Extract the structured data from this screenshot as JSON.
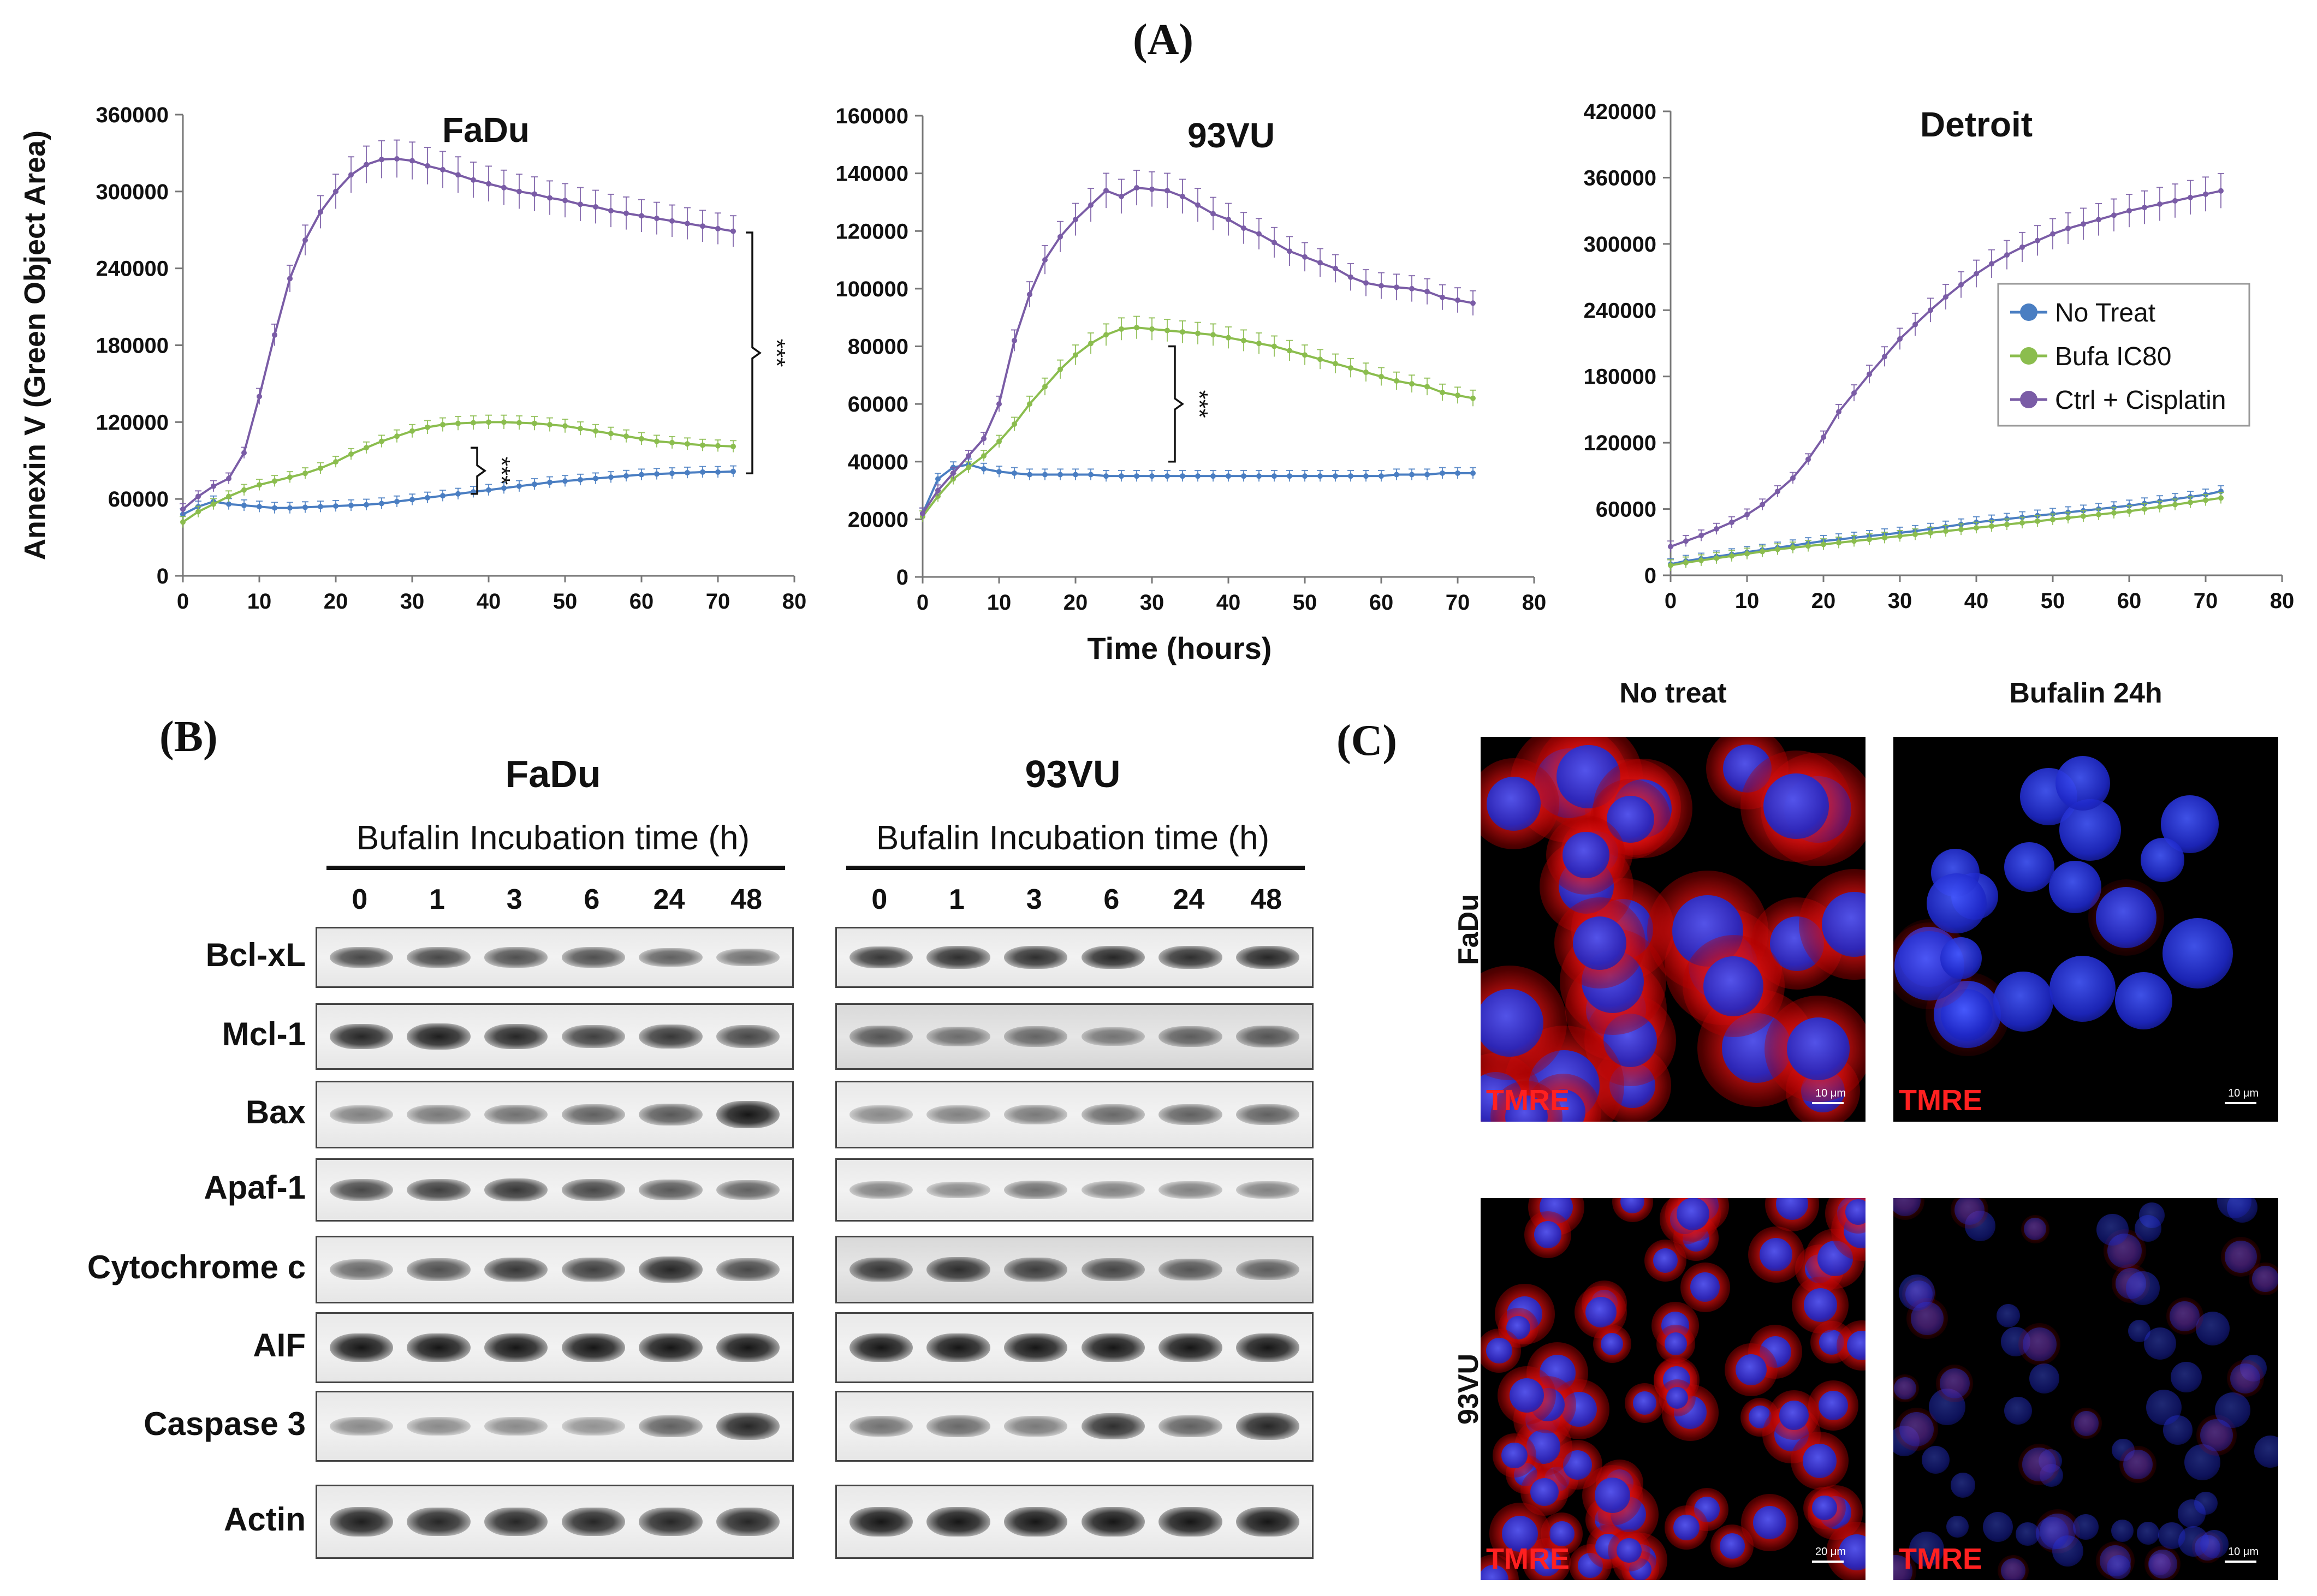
{
  "panel_labels": {
    "a": "(A)",
    "b": "(B)",
    "c": "(C)"
  },
  "colors": {
    "no_treat": "#4a7ec2",
    "bufa": "#8bbd4e",
    "cisplatin": "#7a5ca6"
  },
  "chart_data": [
    {
      "type": "line",
      "title": "FaDu",
      "ylabel": "Annexin V (Green Object Area)",
      "xlabel": "",
      "xlim": [
        0,
        80
      ],
      "ylim": [
        0,
        360000
      ],
      "xticks": [
        "0",
        "10",
        "20",
        "30",
        "40",
        "50",
        "60",
        "70",
        "80"
      ],
      "yticks": [
        "0",
        "60000",
        "120000",
        "180000",
        "240000",
        "300000",
        "360000"
      ],
      "grid": false,
      "x": [
        0,
        2,
        4,
        6,
        8,
        10,
        12,
        14,
        16,
        18,
        20,
        22,
        24,
        26,
        28,
        30,
        32,
        34,
        36,
        38,
        40,
        42,
        44,
        46,
        48,
        50,
        52,
        54,
        56,
        58,
        60,
        62,
        64,
        66,
        68,
        70,
        72
      ],
      "series": [
        {
          "name": "No Treat",
          "color": "#4a7ec2",
          "values": [
            48000,
            54000,
            58000,
            56000,
            55000,
            54000,
            53000,
            53000,
            53500,
            54000,
            54500,
            55000,
            55500,
            56500,
            58000,
            59500,
            61000,
            62500,
            64000,
            65500,
            67000,
            68500,
            70000,
            71500,
            73000,
            74000,
            75000,
            76000,
            77000,
            78000,
            79000,
            79500,
            80000,
            80500,
            81000,
            81000,
            81500
          ]
        },
        {
          "name": "Bufa IC80",
          "color": "#8bbd4e",
          "values": [
            42000,
            50000,
            56000,
            62000,
            67000,
            71000,
            74000,
            77000,
            80000,
            84000,
            89000,
            95000,
            100000,
            105000,
            109000,
            113000,
            116000,
            118000,
            119000,
            119500,
            120000,
            120000,
            119500,
            119000,
            118000,
            117000,
            115000,
            113000,
            111000,
            109000,
            107000,
            105000,
            104000,
            103000,
            102000,
            101500,
            101000
          ]
        },
        {
          "name": "Ctrl + Cisplatin",
          "color": "#7a5ca6",
          "values": [
            52000,
            62000,
            70000,
            76000,
            96000,
            140000,
            188000,
            232000,
            262000,
            284000,
            300000,
            313000,
            321000,
            325000,
            325500,
            324000,
            320000,
            317000,
            313000,
            309000,
            306000,
            303000,
            300000,
            298000,
            295000,
            293000,
            290000,
            288000,
            285000,
            283000,
            281000,
            279000,
            277000,
            275000,
            273000,
            271000,
            269000
          ]
        }
      ],
      "annotations": [
        "***",
        "***"
      ]
    },
    {
      "type": "line",
      "title": "93VU",
      "ylabel": "",
      "xlabel": "Time (hours)",
      "xlim": [
        0,
        80
      ],
      "ylim": [
        0,
        160000
      ],
      "xticks": [
        "0",
        "10",
        "20",
        "30",
        "40",
        "50",
        "60",
        "70",
        "80"
      ],
      "yticks": [
        "0",
        "20000",
        "40000",
        "60000",
        "80000",
        "100000",
        "120000",
        "140000",
        "160000"
      ],
      "grid": false,
      "x": [
        0,
        2,
        4,
        6,
        8,
        10,
        12,
        14,
        16,
        18,
        20,
        22,
        24,
        26,
        28,
        30,
        32,
        34,
        36,
        38,
        40,
        42,
        44,
        46,
        48,
        50,
        52,
        54,
        56,
        58,
        60,
        62,
        64,
        66,
        68,
        70,
        72
      ],
      "series": [
        {
          "name": "No Treat",
          "color": "#4a7ec2",
          "values": [
            22000,
            34000,
            38000,
            39000,
            37500,
            36500,
            36000,
            35500,
            35500,
            35500,
            35500,
            35500,
            35000,
            35000,
            35000,
            35000,
            35000,
            35000,
            35000,
            35000,
            35000,
            35000,
            35000,
            35000,
            35000,
            35000,
            35000,
            35000,
            35000,
            35000,
            35000,
            35500,
            35500,
            35500,
            36000,
            36000,
            36000
          ]
        },
        {
          "name": "Bufa IC80",
          "color": "#8bbd4e",
          "values": [
            21000,
            28000,
            34000,
            38000,
            42000,
            47000,
            53000,
            60000,
            66000,
            72000,
            77000,
            81000,
            84000,
            86000,
            86500,
            86000,
            85500,
            85000,
            84500,
            84000,
            83000,
            82000,
            81000,
            80000,
            78500,
            77000,
            75500,
            74000,
            72500,
            71000,
            69500,
            68000,
            67000,
            66000,
            64000,
            63000,
            62000
          ]
        },
        {
          "name": "Ctrl + Cisplatin",
          "color": "#7a5ca6",
          "values": [
            22000,
            30000,
            36000,
            42000,
            48000,
            60000,
            82000,
            98000,
            110000,
            118000,
            124000,
            129000,
            134000,
            132000,
            135000,
            134500,
            134000,
            132000,
            129000,
            126000,
            124000,
            121000,
            119000,
            116000,
            113000,
            111000,
            109000,
            107000,
            104000,
            102000,
            101000,
            100500,
            100000,
            99000,
            97000,
            96000,
            95000
          ]
        }
      ],
      "annotations": [
        "***"
      ]
    },
    {
      "type": "line",
      "title": "Detroit",
      "ylabel": "",
      "xlabel": "",
      "xlim": [
        0,
        80
      ],
      "ylim": [
        0,
        420000
      ],
      "xticks": [
        "0",
        "10",
        "20",
        "30",
        "40",
        "50",
        "60",
        "70",
        "80"
      ],
      "yticks": [
        "0",
        "60000",
        "120000",
        "180000",
        "240000",
        "300000",
        "360000",
        "420000"
      ],
      "grid": false,
      "legend": "right-middle",
      "x": [
        0,
        2,
        4,
        6,
        8,
        10,
        12,
        14,
        16,
        18,
        20,
        22,
        24,
        26,
        28,
        30,
        32,
        34,
        36,
        38,
        40,
        42,
        44,
        46,
        48,
        50,
        52,
        54,
        56,
        58,
        60,
        62,
        64,
        66,
        68,
        70,
        72
      ],
      "series": [
        {
          "name": "No Treat",
          "color": "#4a7ec2",
          "values": [
            10000,
            13000,
            15000,
            17000,
            19000,
            21000,
            23000,
            25000,
            27000,
            29000,
            31000,
            32500,
            34000,
            35500,
            37000,
            38500,
            40000,
            42000,
            44000,
            46000,
            48000,
            49500,
            51000,
            52500,
            54000,
            55500,
            57000,
            58500,
            60000,
            61500,
            63000,
            65000,
            67000,
            69000,
            71000,
            73000,
            76000
          ]
        },
        {
          "name": "Bufa IC80",
          "color": "#8bbd4e",
          "values": [
            9000,
            11500,
            13500,
            15500,
            17500,
            19500,
            21500,
            23500,
            25000,
            26500,
            28000,
            29500,
            31000,
            32500,
            34000,
            35500,
            37000,
            38500,
            40000,
            41500,
            43000,
            44500,
            46000,
            47500,
            49000,
            50500,
            52000,
            53500,
            55000,
            56500,
            58000,
            60000,
            62000,
            64000,
            66000,
            68000,
            70000
          ]
        },
        {
          "name": "Ctrl + Cisplatin",
          "color": "#7a5ca6",
          "values": [
            26000,
            31000,
            36000,
            42000,
            48000,
            55000,
            64000,
            76000,
            88000,
            105000,
            125000,
            148000,
            165000,
            182000,
            198000,
            214000,
            227000,
            240000,
            252000,
            263000,
            273000,
            282000,
            290000,
            297000,
            303000,
            309000,
            314000,
            318000,
            322000,
            326000,
            330000,
            333000,
            336000,
            339000,
            342000,
            345000,
            348000
          ]
        }
      ]
    }
  ],
  "blot": {
    "left": {
      "title": "FaDu",
      "subtitle": "Bufalin Incubation time (h)",
      "lanes": [
        "0",
        "1",
        "3",
        "6",
        "24",
        "48"
      ],
      "intensities": {
        "Bcl-xL": [
          0.7,
          0.7,
          0.65,
          0.65,
          0.55,
          0.45
        ],
        "Mcl-1": [
          0.9,
          0.95,
          0.9,
          0.75,
          0.8,
          0.7
        ],
        "Bax": [
          0.35,
          0.4,
          0.45,
          0.55,
          0.6,
          1.0
        ],
        "Apaf-1": [
          0.7,
          0.75,
          0.8,
          0.7,
          0.6,
          0.55
        ],
        "Cytochrome c": [
          0.5,
          0.65,
          0.8,
          0.75,
          0.9,
          0.7
        ],
        "AIF": [
          1.0,
          1.0,
          1.0,
          1.0,
          1.0,
          1.0
        ],
        "Caspase 3": [
          0.3,
          0.3,
          0.3,
          0.25,
          0.55,
          0.9
        ],
        "Actin": [
          0.95,
          0.9,
          0.9,
          0.9,
          0.9,
          0.9
        ]
      }
    },
    "right": {
      "title": "93VU",
      "subtitle": "Bufalin Incubation time (h)",
      "lanes": [
        "0",
        "1",
        "3",
        "6",
        "24",
        "48"
      ],
      "intensities": {
        "Bcl-xL": [
          0.8,
          0.85,
          0.85,
          0.9,
          0.85,
          0.9
        ],
        "Mcl-1": [
          0.6,
          0.45,
          0.5,
          0.4,
          0.55,
          0.6
        ],
        "Bax": [
          0.3,
          0.35,
          0.4,
          0.5,
          0.55,
          0.55
        ],
        "Apaf-1": [
          0.35,
          0.3,
          0.45,
          0.35,
          0.35,
          0.35
        ],
        "Cytochrome c": [
          0.8,
          0.85,
          0.75,
          0.7,
          0.6,
          0.55
        ],
        "AIF": [
          1.0,
          1.0,
          1.0,
          1.0,
          1.0,
          1.0
        ],
        "Caspase 3": [
          0.45,
          0.5,
          0.4,
          0.85,
          0.55,
          0.9
        ],
        "Actin": [
          1.0,
          1.0,
          1.0,
          1.0,
          1.0,
          1.0
        ]
      }
    },
    "proteins": [
      "Bcl-xL",
      "Mcl-1",
      "Bax",
      "Apaf-1",
      "Cytochrome c",
      "AIF",
      "Caspase 3",
      "Actin"
    ]
  },
  "micro": {
    "col_heads": [
      "No treat",
      "Bufalin 24h"
    ],
    "row_heads": [
      "FaDu",
      "93VU"
    ],
    "stain_label": "TMRE",
    "scale_labels": [
      "10 μm",
      "10 μm",
      "20 μm",
      "10 μm"
    ]
  }
}
